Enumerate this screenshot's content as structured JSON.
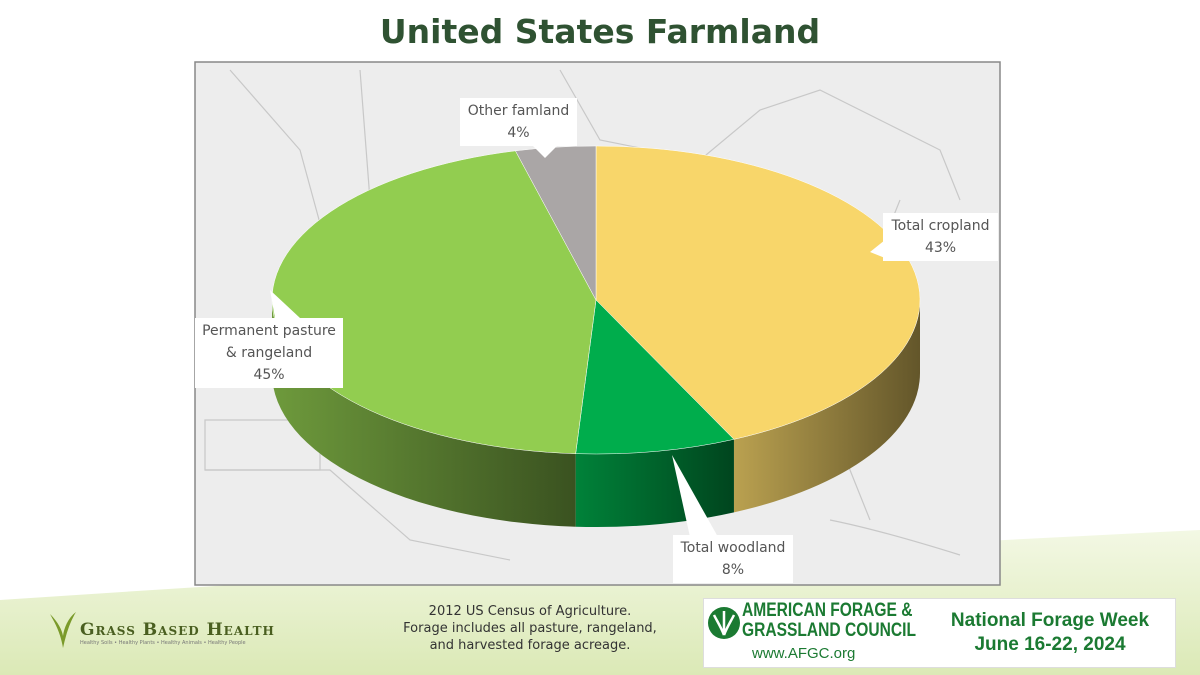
{
  "chart_data": {
    "type": "pie3d",
    "title": "United States Farmland",
    "categories": [
      "Total cropland",
      "Total woodland",
      "Permanent pasture & rangeland",
      "Other famland"
    ],
    "values": [
      43,
      8,
      45,
      4
    ],
    "value_labels": [
      "43%",
      "8%",
      "45%",
      "4%"
    ],
    "colors": [
      "#f8d66a",
      "#00ad4c",
      "#92cd50",
      "#aaa6a6"
    ]
  },
  "footnote": [
    "2012 US Census of Agriculture.",
    "Forage includes all pasture, rangeland,",
    "and harvested forage acreage."
  ],
  "logos": {
    "left": {
      "name": "Grass Based Health",
      "tagline": "Healthy Soils • Healthy Plants • Healthy Animals • Healthy People"
    },
    "right": {
      "name": [
        "AMERICAN FORAGE &",
        "GRASSLAND COUNCIL"
      ],
      "url": "www.AFGC.org",
      "event": [
        "National Forage Week",
        "June 16-22, 2024"
      ]
    }
  }
}
